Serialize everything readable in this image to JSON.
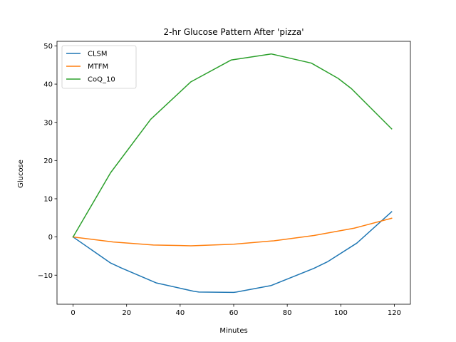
{
  "chart_data": {
    "type": "line",
    "title": "2-hr Glucose Pattern After 'pizza'",
    "xlabel": "Minutes",
    "ylabel": "Glucose",
    "xlim": [
      -6,
      126
    ],
    "ylim": [
      -17.6,
      51.2
    ],
    "x_ticks": [
      0,
      20,
      40,
      60,
      80,
      100,
      120
    ],
    "y_ticks": [
      -10,
      0,
      10,
      20,
      30,
      40,
      50
    ],
    "grid": false,
    "legend_position": "top-left",
    "series": [
      {
        "name": "CLSM",
        "color": "#1f77b4",
        "x": [
          0,
          14,
          18,
          31,
          45,
          47,
          60,
          61,
          74,
          90,
          95,
          106,
          119
        ],
        "y": [
          0,
          -6.8,
          -8.1,
          -12.0,
          -14.2,
          -14.4,
          -14.5,
          -14.4,
          -12.7,
          -8.2,
          -6.5,
          -1.6,
          6.6
        ]
      },
      {
        "name": "MTFM",
        "color": "#ff7f0e",
        "x": [
          0,
          15,
          30,
          44,
          60,
          75,
          90,
          105,
          119
        ],
        "y": [
          0,
          -1.3,
          -2.1,
          -2.3,
          -1.9,
          -1.0,
          0.4,
          2.3,
          4.9
        ]
      },
      {
        "name": "CoQ_10",
        "color": "#2ca02c",
        "x": [
          0,
          14,
          29,
          44,
          59,
          74,
          89,
          99,
          104,
          119
        ],
        "y": [
          0,
          16.8,
          30.8,
          40.6,
          46.3,
          47.9,
          45.5,
          41.5,
          38.8,
          28.3
        ]
      }
    ]
  }
}
